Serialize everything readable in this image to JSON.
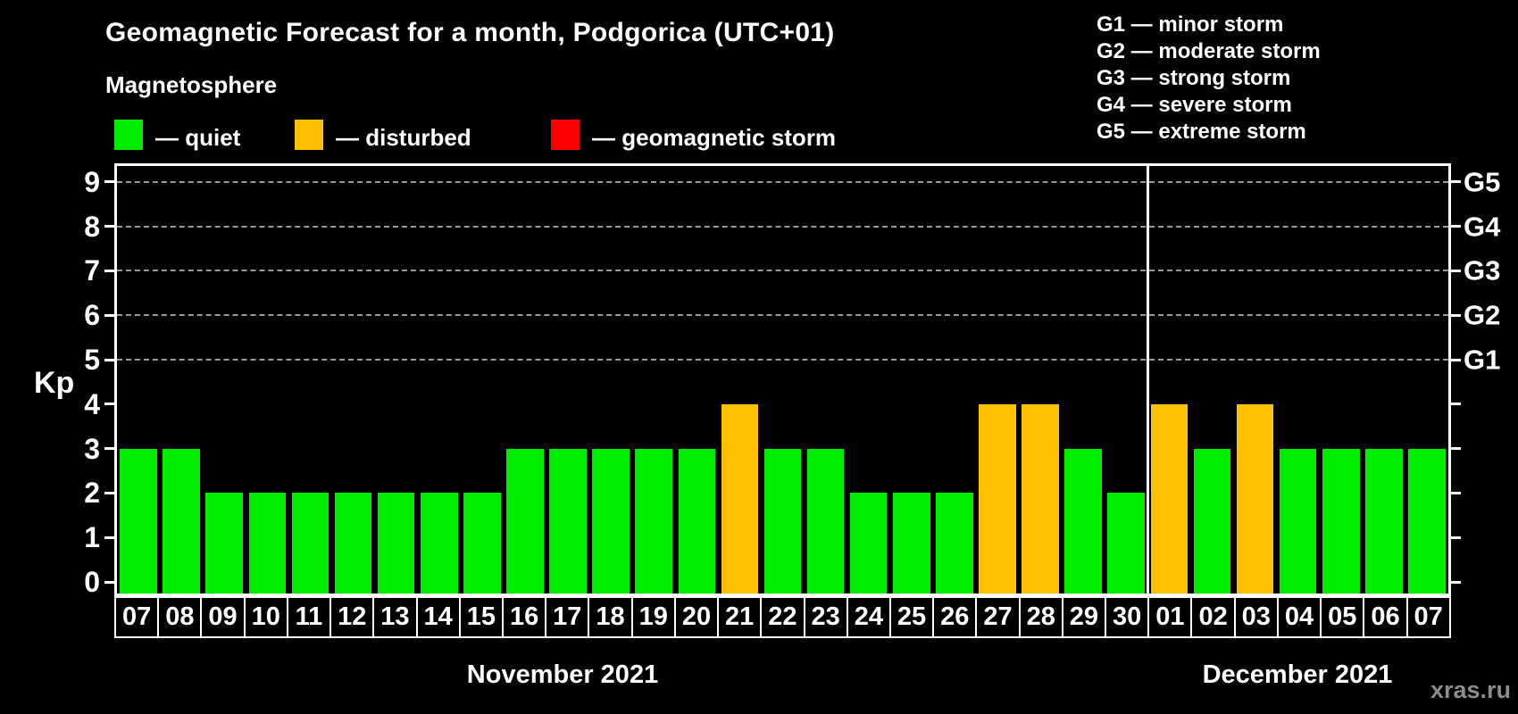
{
  "header": {
    "title": "Geomagnetic Forecast for a month, Podgorica (UTC+01)",
    "subtitle": "Magnetosphere"
  },
  "legend": [
    {
      "label": "— quiet",
      "color": "#00ee00",
      "type": "quiet"
    },
    {
      "label": "— disturbed",
      "color": "#ffc000",
      "type": "disturbed"
    },
    {
      "label": "— geomagnetic storm",
      "color": "#ff0000",
      "type": "storm"
    }
  ],
  "storm_scale_legend": [
    {
      "label": "G1 — minor storm"
    },
    {
      "label": "G2 — moderate storm"
    },
    {
      "label": "G3 — strong storm"
    },
    {
      "label": "G4 — severe storm"
    },
    {
      "label": "G5 — extreme storm"
    }
  ],
  "watermark": "xras.ru",
  "chart_data": {
    "type": "bar",
    "title": "Geomagnetic Forecast for a month, Podgorica (UTC+01)",
    "ylabel": "Kp",
    "xlabel": "",
    "ylim": [
      -0.32,
      9.42
    ],
    "grid": "horizontal dashed at Kp 5-9",
    "y_ticks": [
      "0",
      "1",
      "2",
      "3",
      "4",
      "5",
      "6",
      "7",
      "8",
      "9"
    ],
    "right_axis_labels": [
      {
        "text": "G1",
        "kp": 5
      },
      {
        "text": "G2",
        "kp": 6
      },
      {
        "text": "G3",
        "kp": 7
      },
      {
        "text": "G4",
        "kp": 8
      },
      {
        "text": "G5",
        "kp": 9
      }
    ],
    "gridline_levels": [
      5,
      6,
      7,
      8,
      9
    ],
    "colors": {
      "quiet": "#00ee00",
      "disturbed": "#ffc000",
      "storm": "#ff0000"
    },
    "months": [
      {
        "label": "November 2021"
      },
      {
        "label": "December 2021"
      }
    ],
    "days": [
      {
        "date": "07",
        "month": 0,
        "kp": 3,
        "status": "quiet"
      },
      {
        "date": "08",
        "month": 0,
        "kp": 3,
        "status": "quiet"
      },
      {
        "date": "09",
        "month": 0,
        "kp": 2,
        "status": "quiet"
      },
      {
        "date": "10",
        "month": 0,
        "kp": 2,
        "status": "quiet"
      },
      {
        "date": "11",
        "month": 0,
        "kp": 2,
        "status": "quiet"
      },
      {
        "date": "12",
        "month": 0,
        "kp": 2,
        "status": "quiet"
      },
      {
        "date": "13",
        "month": 0,
        "kp": 2,
        "status": "quiet"
      },
      {
        "date": "14",
        "month": 0,
        "kp": 2,
        "status": "quiet"
      },
      {
        "date": "15",
        "month": 0,
        "kp": 2,
        "status": "quiet"
      },
      {
        "date": "16",
        "month": 0,
        "kp": 3,
        "status": "quiet"
      },
      {
        "date": "17",
        "month": 0,
        "kp": 3,
        "status": "quiet"
      },
      {
        "date": "18",
        "month": 0,
        "kp": 3,
        "status": "quiet"
      },
      {
        "date": "19",
        "month": 0,
        "kp": 3,
        "status": "quiet"
      },
      {
        "date": "20",
        "month": 0,
        "kp": 3,
        "status": "quiet"
      },
      {
        "date": "21",
        "month": 0,
        "kp": 4,
        "status": "disturbed"
      },
      {
        "date": "22",
        "month": 0,
        "kp": 3,
        "status": "quiet"
      },
      {
        "date": "23",
        "month": 0,
        "kp": 3,
        "status": "quiet"
      },
      {
        "date": "24",
        "month": 0,
        "kp": 2,
        "status": "quiet"
      },
      {
        "date": "25",
        "month": 0,
        "kp": 2,
        "status": "quiet"
      },
      {
        "date": "26",
        "month": 0,
        "kp": 2,
        "status": "quiet"
      },
      {
        "date": "27",
        "month": 0,
        "kp": 4,
        "status": "disturbed"
      },
      {
        "date": "28",
        "month": 0,
        "kp": 4,
        "status": "disturbed"
      },
      {
        "date": "29",
        "month": 0,
        "kp": 3,
        "status": "quiet"
      },
      {
        "date": "30",
        "month": 0,
        "kp": 2,
        "status": "quiet"
      },
      {
        "date": "01",
        "month": 1,
        "kp": 4,
        "status": "disturbed"
      },
      {
        "date": "02",
        "month": 1,
        "kp": 3,
        "status": "quiet"
      },
      {
        "date": "03",
        "month": 1,
        "kp": 4,
        "status": "disturbed"
      },
      {
        "date": "04",
        "month": 1,
        "kp": 3,
        "status": "quiet"
      },
      {
        "date": "05",
        "month": 1,
        "kp": 3,
        "status": "quiet"
      },
      {
        "date": "06",
        "month": 1,
        "kp": 3,
        "status": "quiet"
      },
      {
        "date": "07",
        "month": 1,
        "kp": 3,
        "status": "quiet"
      }
    ]
  }
}
